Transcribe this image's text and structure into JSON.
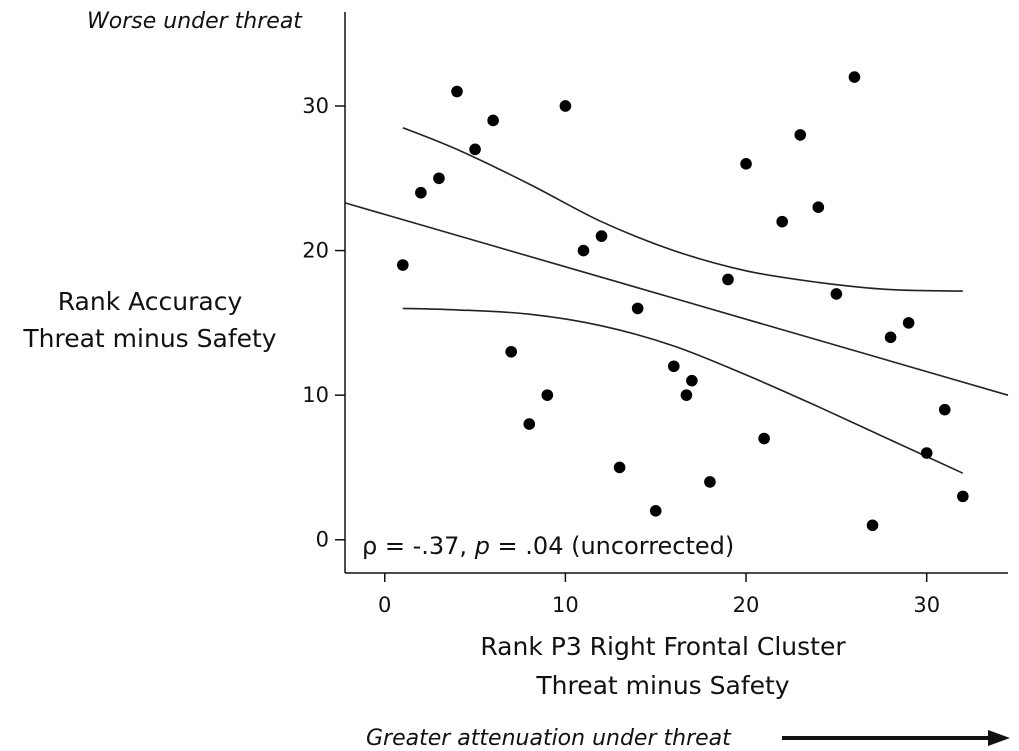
{
  "chart_data": {
    "type": "scatter",
    "xlabel": [
      "Rank P3 Right Frontal Cluster",
      "Threat minus Safety"
    ],
    "ylabel": [
      "Rank Accuracy",
      "Threat minus Safety"
    ],
    "xlim": [
      -2.2,
      34.5
    ],
    "ylim": [
      -2.3,
      36.5
    ],
    "xticks": [
      0,
      10,
      20,
      30
    ],
    "yticks": [
      0,
      10,
      20,
      30
    ],
    "annotations": {
      "top": "Worse under threat",
      "bottom": "Greater attenuation under threat",
      "stats": {
        "rho_symbol": "ρ",
        "rho_text": " = -.37, ",
        "p_symbol": "p",
        "p_text": " = .04 (uncorrected)"
      }
    },
    "points": [
      {
        "x": 1,
        "y": 19
      },
      {
        "x": 2,
        "y": 24
      },
      {
        "x": 3,
        "y": 25
      },
      {
        "x": 4,
        "y": 31
      },
      {
        "x": 5,
        "y": 27
      },
      {
        "x": 6,
        "y": 29
      },
      {
        "x": 7,
        "y": 13
      },
      {
        "x": 8,
        "y": 8
      },
      {
        "x": 9,
        "y": 10
      },
      {
        "x": 10,
        "y": 30
      },
      {
        "x": 11,
        "y": 20
      },
      {
        "x": 12,
        "y": 21
      },
      {
        "x": 13,
        "y": 5
      },
      {
        "x": 14,
        "y": 16
      },
      {
        "x": 15,
        "y": 2
      },
      {
        "x": 16,
        "y": 12
      },
      {
        "x": 16.7,
        "y": 10
      },
      {
        "x": 17,
        "y": 11
      },
      {
        "x": 18,
        "y": 4
      },
      {
        "x": 19,
        "y": 18
      },
      {
        "x": 20,
        "y": 26
      },
      {
        "x": 21,
        "y": 7
      },
      {
        "x": 22,
        "y": 22
      },
      {
        "x": 23,
        "y": 28
      },
      {
        "x": 24,
        "y": 23
      },
      {
        "x": 25,
        "y": 17
      },
      {
        "x": 26,
        "y": 32
      },
      {
        "x": 27,
        "y": 1
      },
      {
        "x": 28,
        "y": 14
      },
      {
        "x": 29,
        "y": 15
      },
      {
        "x": 30,
        "y": 6
      },
      {
        "x": 31,
        "y": 9
      },
      {
        "x": 32,
        "y": 3
      }
    ],
    "fit_line": [
      {
        "x": -2.2,
        "y": 23.3
      },
      {
        "x": 34.5,
        "y": 10
      }
    ],
    "ci_upper": [
      {
        "x": 1,
        "y": 28.5
      },
      {
        "x": 4,
        "y": 27
      },
      {
        "x": 8,
        "y": 24.6
      },
      {
        "x": 12,
        "y": 22
      },
      {
        "x": 16,
        "y": 20
      },
      {
        "x": 20,
        "y": 18.6
      },
      {
        "x": 24,
        "y": 17.8
      },
      {
        "x": 28,
        "y": 17.3
      },
      {
        "x": 32,
        "y": 17.2
      }
    ],
    "ci_lower": [
      {
        "x": 1,
        "y": 16
      },
      {
        "x": 4,
        "y": 15.9
      },
      {
        "x": 8,
        "y": 15.6
      },
      {
        "x": 12,
        "y": 14.8
      },
      {
        "x": 16,
        "y": 13.4
      },
      {
        "x": 20,
        "y": 11.4
      },
      {
        "x": 24,
        "y": 9.2
      },
      {
        "x": 28,
        "y": 6.9
      },
      {
        "x": 32,
        "y": 4.6
      }
    ],
    "grid": false,
    "legend": "none"
  }
}
